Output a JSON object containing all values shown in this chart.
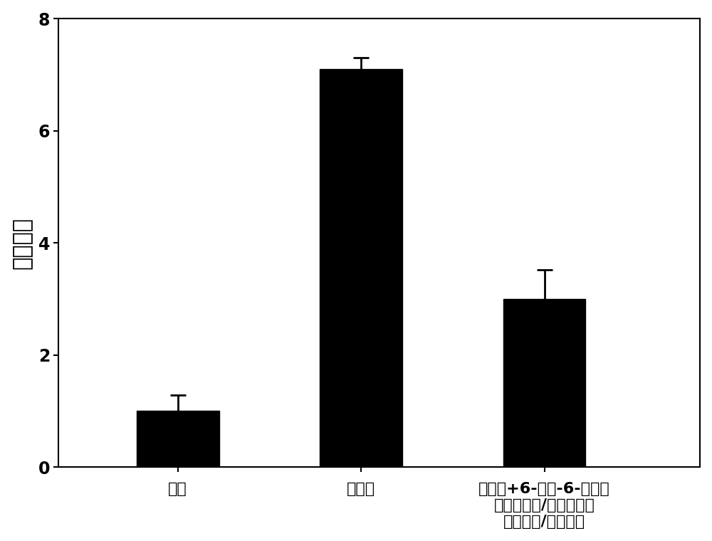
{
  "categories": [
    "正常",
    "脂多糖",
    "脂多糖+6-脱氧-6-精氨酸\n接枝壳聰糖/二醉功能化\n聚乙二醇/二甲双胍"
  ],
  "values": [
    1.0,
    7.1,
    3.0
  ],
  "errors": [
    0.28,
    0.2,
    0.52
  ],
  "bar_color": "#000000",
  "ylabel": "差异倍数",
  "ylim": [
    0,
    8
  ],
  "yticks": [
    0,
    2,
    4,
    6,
    8
  ],
  "bar_width": 0.45,
  "background_color": "#ffffff",
  "ylabel_fontsize": 22,
  "tick_fontsize": 17,
  "xlabel_fontsize": 16
}
